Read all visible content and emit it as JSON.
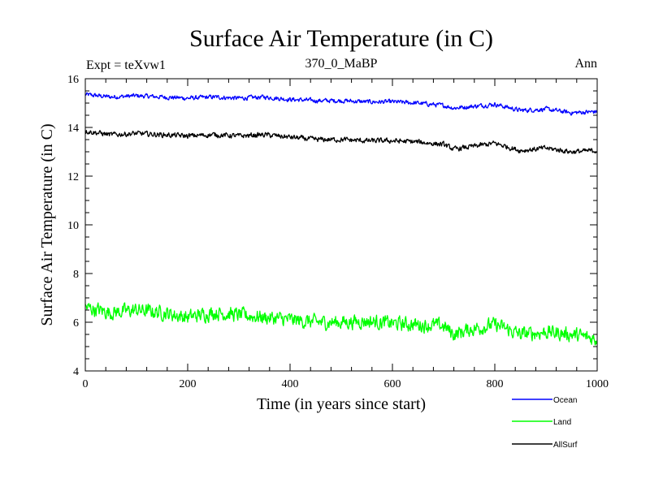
{
  "chart_data": {
    "type": "line",
    "title": "Surface Air Temperature (in C)",
    "header_left": "Expt = teXvw1",
    "header_center": "370_0_MaBP",
    "header_right": "Ann",
    "xlabel": "Time (in years since start)",
    "ylabel": "Surface Air Temperature (in C)",
    "xlim": [
      0,
      1000
    ],
    "ylim": [
      4,
      16
    ],
    "x_ticks": [
      0,
      200,
      400,
      600,
      800,
      1000
    ],
    "x_tick_labels": [
      "0",
      "200",
      "400",
      "600",
      "800",
      "1000"
    ],
    "y_ticks": [
      4,
      6,
      8,
      10,
      12,
      14,
      16
    ],
    "y_tick_labels": [
      "4",
      "6",
      "8",
      "10",
      "12",
      "14",
      "16"
    ],
    "grid": false,
    "legend_position": "bottom-right, below plot",
    "x": [
      0,
      50,
      100,
      150,
      200,
      250,
      300,
      350,
      400,
      450,
      500,
      550,
      600,
      650,
      700,
      720,
      750,
      800,
      850,
      900,
      950,
      1000
    ],
    "series": [
      {
        "name": "Ocean",
        "color": "#0000ff",
        "values": [
          15.35,
          15.25,
          15.3,
          15.25,
          15.2,
          15.25,
          15.2,
          15.25,
          15.15,
          15.1,
          15.1,
          15.05,
          15.05,
          15.0,
          14.9,
          14.8,
          14.85,
          14.95,
          14.7,
          14.75,
          14.6,
          14.65
        ]
      },
      {
        "name": "Land",
        "color": "#00ff00",
        "values": [
          6.6,
          6.4,
          6.5,
          6.4,
          6.2,
          6.4,
          6.3,
          6.2,
          6.1,
          6.0,
          6.0,
          6.05,
          5.95,
          5.9,
          5.85,
          5.5,
          5.7,
          5.9,
          5.5,
          5.6,
          5.5,
          5.3
        ]
      },
      {
        "name": "AllSurf",
        "color": "#000000",
        "values": [
          13.85,
          13.7,
          13.75,
          13.7,
          13.65,
          13.7,
          13.65,
          13.7,
          13.6,
          13.5,
          13.5,
          13.45,
          13.45,
          13.4,
          13.3,
          13.1,
          13.2,
          13.35,
          13.05,
          13.15,
          13.0,
          13.05
        ]
      }
    ]
  }
}
